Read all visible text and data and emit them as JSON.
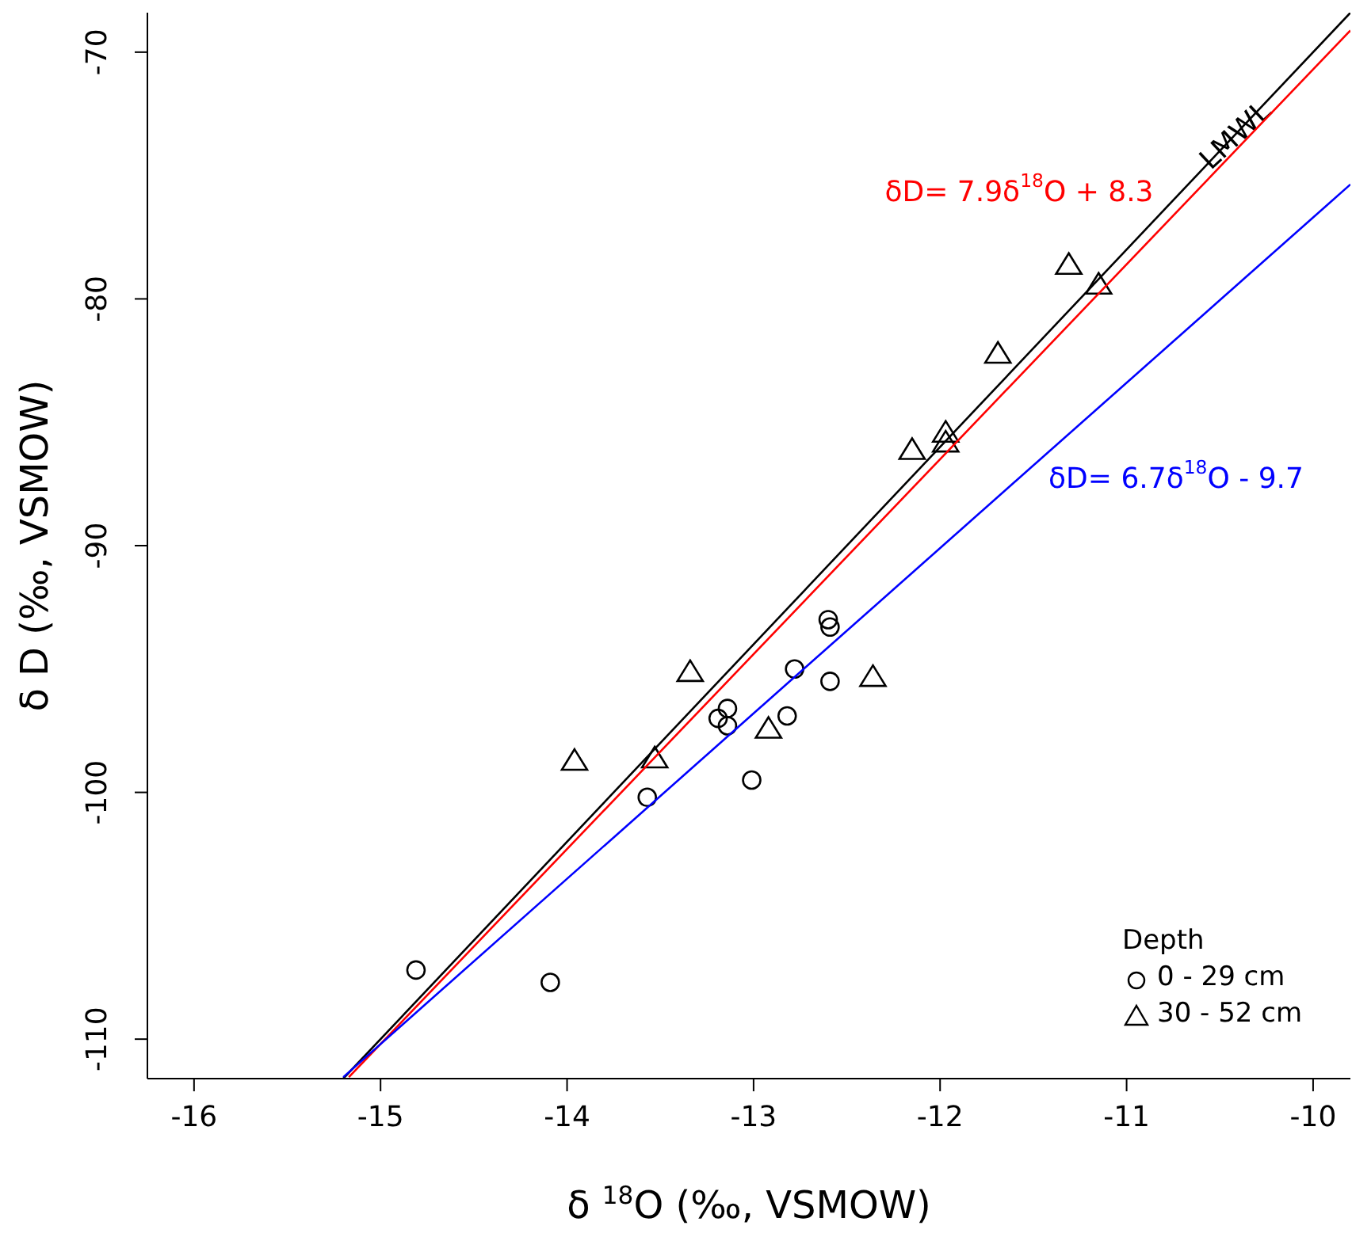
{
  "chart_data": {
    "type": "scatter",
    "xlabel": "δ $^{18}$O (‰, VSMOW)",
    "ylabel": "δ D (‰, VSMOW)",
    "legend_title": "Depth",
    "legend": "bottom right",
    "grid": false,
    "xlim": [
      -16.25,
      -9.8
    ],
    "xticks": [
      -16,
      -15,
      -14,
      -13,
      -12,
      -11,
      -10
    ],
    "ylim": [
      -111.6,
      -68.4
    ],
    "yticks": [
      -110,
      -100,
      -90,
      -80,
      -70
    ],
    "series": [
      {
        "name": "0 - 29 cm",
        "marker": "circle",
        "color": "#000000",
        "x": [
          -14.81,
          -14.09,
          -13.57,
          -13.01,
          -12.82,
          -13.14,
          -13.19,
          -13.14,
          -12.78,
          -12.59,
          -12.6,
          -12.59
        ],
        "values": [
          -107.2,
          -107.7,
          -100.2,
          -99.5,
          -96.9,
          -96.6,
          -97.0,
          -97.3,
          -95.0,
          -93.3,
          -93.0,
          -95.5
        ]
      },
      {
        "name": "30 - 52 cm",
        "marker": "triangle",
        "color": "#000000",
        "x": [
          -13.96,
          -13.53,
          -13.34,
          -12.92,
          -12.36,
          -12.15,
          -11.97,
          -11.97,
          -11.69,
          -11.31,
          -11.15
        ],
        "values": [
          -98.7,
          -98.6,
          -95.1,
          -97.4,
          -95.3,
          -86.1,
          -85.4,
          -85.8,
          -82.2,
          -78.6,
          -79.4
        ]
      },
      {
        "type": "line",
        "color": "#000000",
        "x": [
          -15.2,
          -9.8
        ],
        "values": [
          -111.6,
          -68.4
        ]
      },
      {
        "type": "line",
        "color": "#ff0000",
        "x": [
          -15.17,
          -9.8
        ],
        "values": [
          -111.54,
          -69.12
        ]
      },
      {
        "type": "line",
        "color": "#0000ff",
        "x": [
          -15.2,
          -9.8
        ],
        "values": [
          -111.54,
          -75.36
        ]
      }
    ],
    "annotations": [
      "LMWL",
      "δD= 7.9δ$^{18}$O + 8.3",
      "δD= 6.7δ$^{18}$O - 9.7"
    ]
  }
}
